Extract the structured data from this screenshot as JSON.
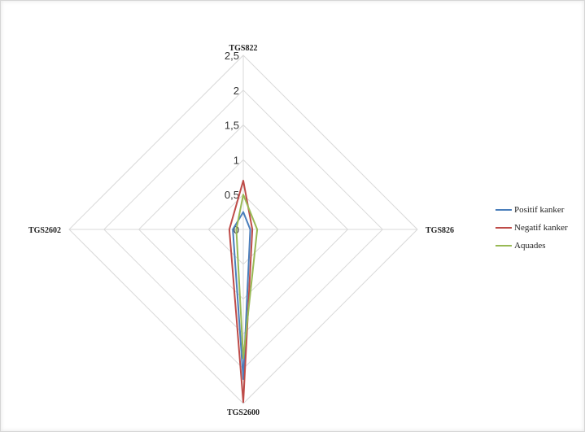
{
  "chart_data": {
    "type": "radar",
    "axes": [
      "TGS822",
      "TGS826",
      "TGS2600",
      "TGS2602"
    ],
    "rlim": [
      0,
      2.5
    ],
    "ticks": [
      "0",
      "0,5",
      "1",
      "1,5",
      "2",
      "2,5"
    ],
    "tick_values": [
      0,
      0.5,
      1,
      1.5,
      2,
      2.5
    ],
    "grid": true,
    "legend_position": "right",
    "series": [
      {
        "name": "Positif kanker",
        "color": "#4a7ebb",
        "values": [
          0.25,
          0.1,
          2.15,
          0.15
        ]
      },
      {
        "name": "Negatif kanker",
        "color": "#be4b48",
        "values": [
          0.7,
          0.13,
          2.48,
          0.2
        ]
      },
      {
        "name": "Aquades",
        "color": "#98b954",
        "values": [
          0.5,
          0.2,
          1.85,
          0.1
        ]
      }
    ]
  }
}
